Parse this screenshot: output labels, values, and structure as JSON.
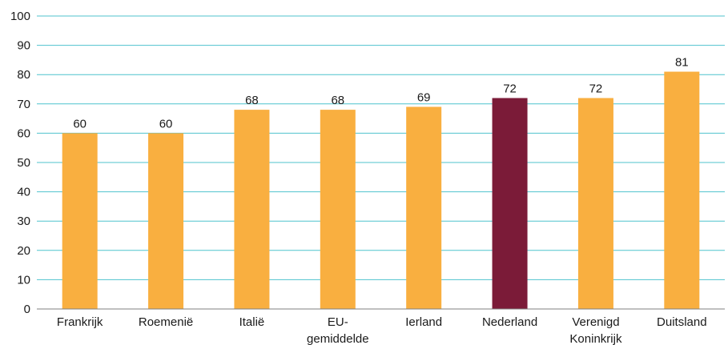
{
  "chart_data": {
    "type": "bar",
    "categories": [
      "Frankrijk",
      "Roemenië",
      "Italië",
      "EU-gemiddelde",
      "Ierland",
      "Nederland",
      "Verenigd Koninkrijk",
      "Duitsland"
    ],
    "category_label_lines": [
      [
        "Frankrijk"
      ],
      [
        "Roemenië"
      ],
      [
        "Italië"
      ],
      [
        "EU-",
        "gemiddelde"
      ],
      [
        "Ierland"
      ],
      [
        "Nederland"
      ],
      [
        "Verenigd",
        "Koninkrijk"
      ],
      [
        "Duitsland"
      ]
    ],
    "values": [
      60,
      60,
      68,
      68,
      69,
      72,
      72,
      81
    ],
    "value_labels": [
      "60",
      "60",
      "68",
      "68",
      "69",
      "72",
      "72",
      "81"
    ],
    "ylim": [
      0,
      100
    ],
    "y_ticks": [
      0,
      10,
      20,
      30,
      40,
      50,
      60,
      70,
      80,
      90,
      100
    ],
    "y_tick_labels": [
      "0",
      "10",
      "20",
      "30",
      "40",
      "50",
      "60",
      "70",
      "80",
      "90",
      "100"
    ],
    "grid": true,
    "legend": "none",
    "title": "",
    "xlabel": "",
    "ylabel": "",
    "colors": {
      "bar_default": "#F9AF40",
      "bar_highlight": "#7B1B38",
      "gridline": "#4FC3CE",
      "axis": "#7f7f7f"
    },
    "highlight_category": "Nederland"
  }
}
